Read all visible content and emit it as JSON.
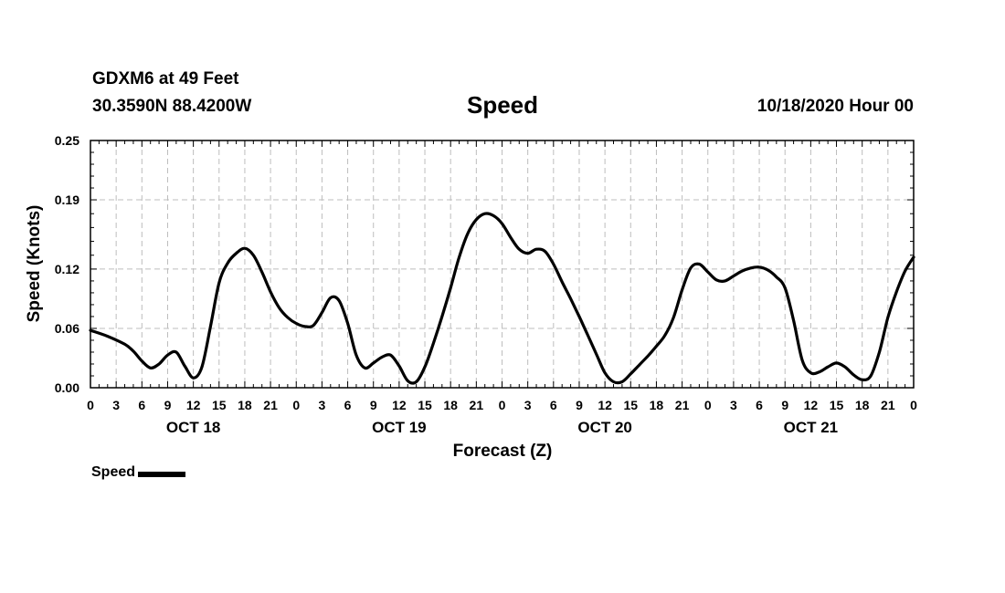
{
  "header": {
    "station": "GDXM6 at 49 Feet",
    "coords": "30.3590N 88.4200W",
    "title": "Speed",
    "datetime": "10/18/2020 Hour 00"
  },
  "chart_data": {
    "type": "line",
    "title": "Speed",
    "xlabel": "Forecast (Z)",
    "ylabel": "Speed (Knots)",
    "ylim": [
      0,
      0.25
    ],
    "xlim": [
      0,
      96
    ],
    "grid": true,
    "yticks": [
      0.0,
      0.06,
      0.12,
      0.19,
      0.25
    ],
    "ytick_labels": [
      "0.00",
      "0.06",
      "0.12",
      "0.19",
      "0.25"
    ],
    "xtick_hours": [
      0,
      3,
      6,
      9,
      12,
      15,
      18,
      21,
      24,
      27,
      30,
      33,
      36,
      39,
      42,
      45,
      48,
      51,
      54,
      57,
      60,
      63,
      66,
      69,
      72,
      75,
      78,
      81,
      84,
      87,
      90,
      93,
      96
    ],
    "xtick_labels": [
      "0",
      "3",
      "6",
      "9",
      "12",
      "15",
      "18",
      "21",
      "0",
      "3",
      "6",
      "9",
      "12",
      "15",
      "18",
      "21",
      "0",
      "3",
      "6",
      "9",
      "12",
      "15",
      "18",
      "21",
      "0",
      "3",
      "6",
      "9",
      "12",
      "15",
      "18",
      "21",
      "0"
    ],
    "day_labels": [
      {
        "hour": 12,
        "label": "OCT 18"
      },
      {
        "hour": 36,
        "label": "OCT 19"
      },
      {
        "hour": 60,
        "label": "OCT 20"
      },
      {
        "hour": 84,
        "label": "OCT 21"
      }
    ],
    "series": [
      {
        "name": "Speed",
        "color": "#000000",
        "x": [
          0,
          2,
          4,
          5,
          6,
          7,
          8,
          9,
          10,
          11,
          12,
          13,
          14,
          15,
          16,
          17,
          18,
          19,
          20,
          21,
          22,
          23,
          24,
          25,
          26,
          27,
          28,
          29,
          30,
          31,
          32,
          33,
          34,
          35,
          36,
          37,
          38,
          39,
          40,
          41,
          42,
          43,
          44,
          45,
          46,
          47,
          48,
          49,
          50,
          51,
          52,
          53,
          54,
          55,
          56,
          57,
          58,
          59,
          60,
          61,
          62,
          63,
          64,
          65,
          66,
          67,
          68,
          69,
          70,
          71,
          72,
          73,
          74,
          75,
          76,
          77,
          78,
          79,
          80,
          81,
          82,
          83,
          84,
          85,
          86,
          87,
          88,
          89,
          90,
          91,
          92,
          93,
          94,
          95,
          96
        ],
        "values": [
          0.058,
          0.052,
          0.044,
          0.037,
          0.027,
          0.02,
          0.024,
          0.033,
          0.036,
          0.022,
          0.01,
          0.021,
          0.062,
          0.106,
          0.126,
          0.136,
          0.141,
          0.134,
          0.117,
          0.097,
          0.081,
          0.071,
          0.065,
          0.062,
          0.063,
          0.076,
          0.091,
          0.088,
          0.065,
          0.033,
          0.02,
          0.025,
          0.031,
          0.033,
          0.022,
          0.007,
          0.006,
          0.021,
          0.045,
          0.072,
          0.101,
          0.132,
          0.156,
          0.17,
          0.176,
          0.174,
          0.166,
          0.152,
          0.14,
          0.136,
          0.14,
          0.138,
          0.125,
          0.107,
          0.09,
          0.072,
          0.053,
          0.034,
          0.015,
          0.006,
          0.006,
          0.014,
          0.023,
          0.032,
          0.042,
          0.053,
          0.071,
          0.099,
          0.121,
          0.125,
          0.117,
          0.109,
          0.108,
          0.113,
          0.118,
          0.121,
          0.122,
          0.119,
          0.112,
          0.101,
          0.068,
          0.028,
          0.015,
          0.016,
          0.021,
          0.025,
          0.021,
          0.013,
          0.008,
          0.012,
          0.036,
          0.071,
          0.097,
          0.118,
          0.132
        ]
      }
    ],
    "legend": {
      "label": "Speed",
      "position": "bottom-left"
    }
  }
}
